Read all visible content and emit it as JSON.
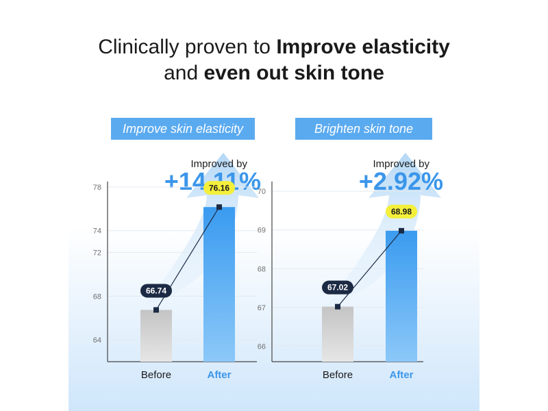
{
  "headline": {
    "line1_normal": "Clinically proven to ",
    "line1_bold": "Improve elasticity",
    "line2_normal": "and ",
    "line2_bold": "even out skin tone"
  },
  "colors": {
    "banner": "#5aaaf0",
    "accent_blue": "#3b96ea",
    "before_label_bg": "#1c2a44",
    "after_label_bg": "#f4ef3a",
    "before_bar": "#bdbdbd",
    "after_bar": "#3f9ef0"
  },
  "chart_data": [
    {
      "type": "bar",
      "title": "Improve skin elasticity",
      "improved_label": "Improved by",
      "improved_value": "+14.11%",
      "categories": [
        "Before",
        "After"
      ],
      "values": [
        66.74,
        76.16
      ],
      "value_labels": [
        "66.74",
        "76.16"
      ],
      "yticks": [
        "64",
        "68",
        "72",
        "74",
        "78"
      ],
      "ytick_values": [
        64,
        68,
        72,
        74,
        78
      ],
      "ylim": [
        62,
        78.5
      ],
      "grid": true
    },
    {
      "type": "bar",
      "title": "Brighten skin tone",
      "improved_label": "Improved by",
      "improved_value": "+2.92%",
      "categories": [
        "Before",
        "After"
      ],
      "values": [
        67.02,
        68.98
      ],
      "value_labels": [
        "67.02",
        "68.98"
      ],
      "yticks": [
        "66",
        "67",
        "68",
        "69",
        "70"
      ],
      "ytick_values": [
        66,
        67,
        68,
        69,
        70
      ],
      "ylim": [
        65.6,
        70.25
      ],
      "grid": true
    }
  ]
}
